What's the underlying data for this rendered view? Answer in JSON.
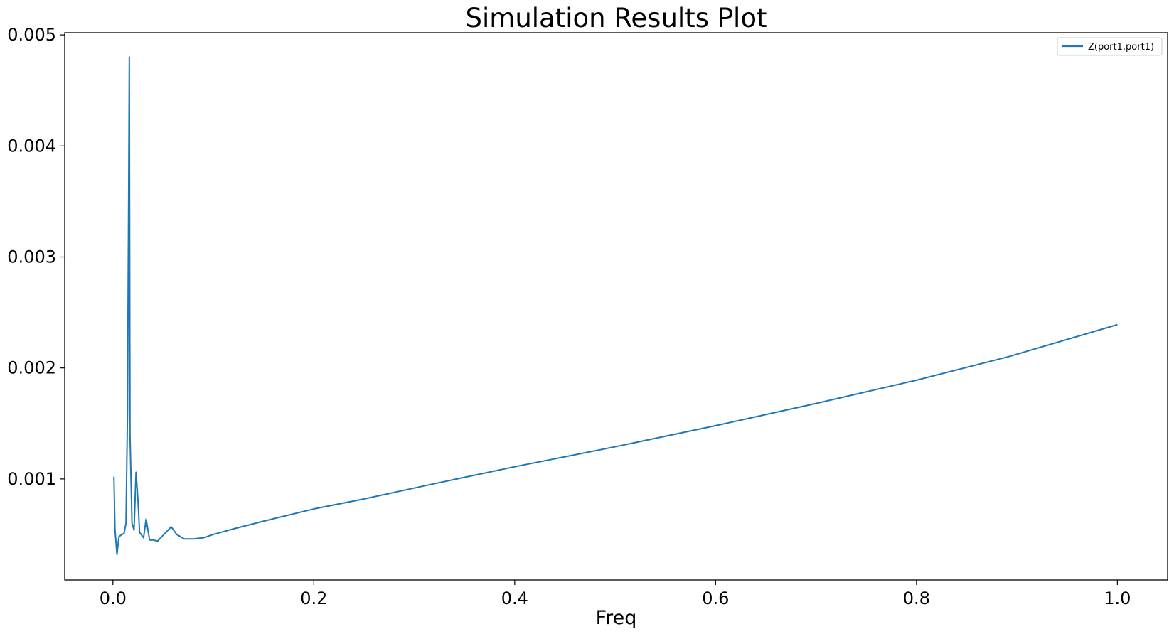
{
  "chart_data": {
    "type": "line",
    "title": "Simulation Results Plot",
    "xlabel": "Freq",
    "ylabel": "",
    "xlim": [
      -0.048,
      1.05
    ],
    "ylim": [
      9e-05,
      0.00502
    ],
    "xticks": [
      0.0,
      0.2,
      0.4,
      0.6,
      0.8,
      1.0
    ],
    "xtick_labels": [
      "0.0",
      "0.2",
      "0.4",
      "0.6",
      "0.8",
      "1.0"
    ],
    "yticks": [
      0.001,
      0.002,
      0.003,
      0.004,
      0.005
    ],
    "ytick_labels": [
      "0.001",
      "0.002",
      "0.003",
      "0.004",
      "0.005"
    ],
    "grid": false,
    "legend_position": "top-right",
    "colors": {
      "series": "#1f77b4",
      "frame": "#000000"
    },
    "series": [
      {
        "name": "Z(port1,port1)",
        "x": [
          0.001,
          0.002,
          0.004,
          0.006,
          0.009,
          0.011,
          0.013,
          0.0145,
          0.0158,
          0.0163,
          0.017,
          0.019,
          0.021,
          0.023,
          0.025,
          0.0265,
          0.028,
          0.0305,
          0.033,
          0.0365,
          0.04,
          0.0445,
          0.0475,
          0.053,
          0.058,
          0.0635,
          0.071,
          0.08,
          0.09,
          0.1,
          0.12,
          0.15,
          0.2,
          0.25,
          0.3162,
          0.4,
          0.5,
          0.6,
          0.7,
          0.8,
          0.891,
          1.0
        ],
        "y": [
          0.00102,
          0.00055,
          0.00032,
          0.00048,
          0.0005,
          0.00051,
          0.0006,
          0.0016,
          0.0038,
          0.0048,
          0.0014,
          0.0006,
          0.00054,
          0.00106,
          0.0008,
          0.00052,
          0.0005,
          0.00047,
          0.00064,
          0.00045,
          0.00045,
          0.00044,
          0.00047,
          0.00052,
          0.00057,
          0.0005,
          0.00046,
          0.00046,
          0.00047,
          0.0005,
          0.00055,
          0.00062,
          0.00073,
          0.00082,
          0.00095,
          0.00111,
          0.00129,
          0.00148,
          0.00168,
          0.00189,
          0.0021,
          0.00239
        ]
      }
    ]
  }
}
